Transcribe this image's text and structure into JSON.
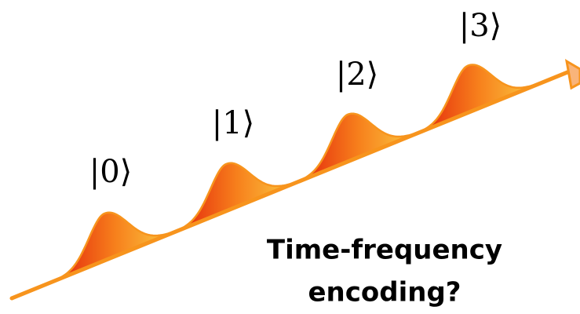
{
  "kets": [
    "|0⟩",
    "|1⟩",
    "|2⟩",
    "|3⟩"
  ],
  "caption": [
    "Time-frequency",
    "encoding?"
  ]
}
